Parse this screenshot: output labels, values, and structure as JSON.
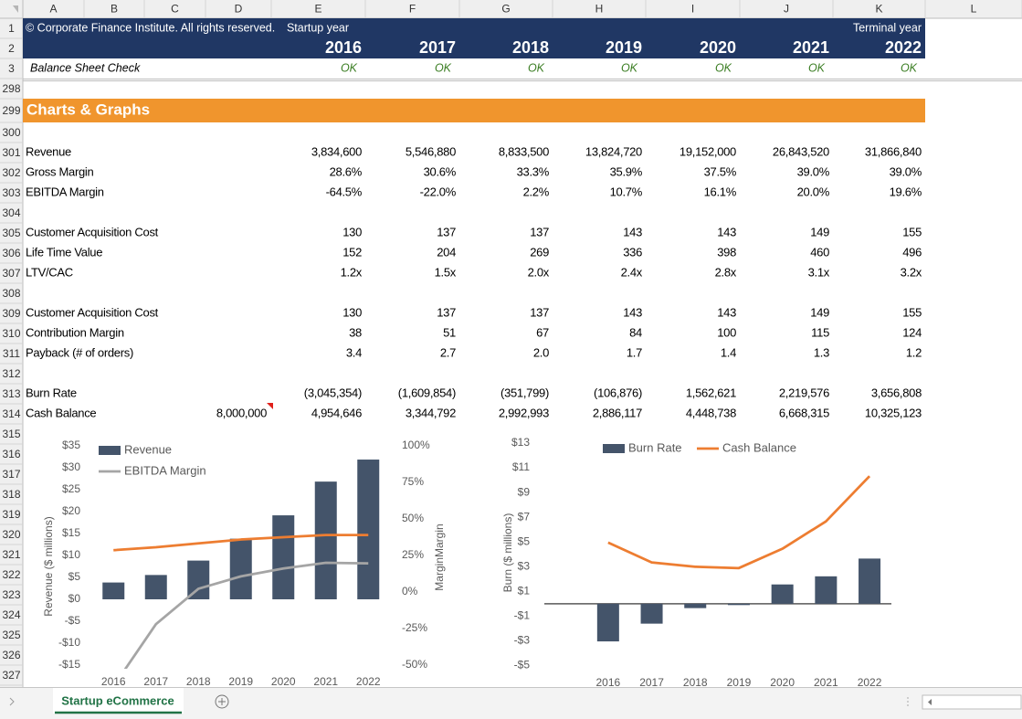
{
  "columns": [
    "A",
    "B",
    "C",
    "D",
    "E",
    "F",
    "G",
    "H",
    "I",
    "J",
    "K",
    "L"
  ],
  "row_numbers": [
    1,
    2,
    3,
    298,
    299,
    300,
    301,
    302,
    303,
    304,
    305,
    306,
    307,
    308,
    309,
    310,
    311,
    312,
    313,
    314,
    315,
    316,
    317,
    318,
    319,
    320,
    321,
    322,
    323,
    324,
    325,
    326,
    327
  ],
  "header": {
    "copyright": "© Corporate Finance Institute. All rights reserved.",
    "startup_label": "Startup year",
    "terminal_label": "Terminal year",
    "years": [
      2016,
      2017,
      2018,
      2019,
      2020,
      2021,
      2022
    ]
  },
  "check": {
    "label": "Balance Sheet Check",
    "values": [
      "OK",
      "OK",
      "OK",
      "OK",
      "OK",
      "OK",
      "OK"
    ]
  },
  "section_title": "Charts & Graphs",
  "table": {
    "rows": [
      {
        "label": "Revenue",
        "values": [
          "3,834,600",
          "5,546,880",
          "8,833,500",
          "13,824,720",
          "19,152,000",
          "26,843,520",
          "31,866,840"
        ]
      },
      {
        "label": "Gross Margin",
        "values": [
          "28.6%",
          "30.6%",
          "33.3%",
          "35.9%",
          "37.5%",
          "39.0%",
          "39.0%"
        ]
      },
      {
        "label": "EBITDA Margin",
        "values": [
          "-64.5%",
          "-22.0%",
          "2.2%",
          "10.7%",
          "16.1%",
          "20.0%",
          "19.6%"
        ]
      },
      {
        "label": "Customer Acquisition Cost",
        "values": [
          "130",
          "137",
          "137",
          "143",
          "143",
          "149",
          "155"
        ]
      },
      {
        "label": "Life Time Value",
        "values": [
          "152",
          "204",
          "269",
          "336",
          "398",
          "460",
          "496"
        ]
      },
      {
        "label": "LTV/CAC",
        "values": [
          "1.2x",
          "1.5x",
          "2.0x",
          "2.4x",
          "2.8x",
          "3.1x",
          "3.2x"
        ]
      },
      {
        "label": "Customer Acquisition Cost",
        "values": [
          "130",
          "137",
          "137",
          "143",
          "143",
          "149",
          "155"
        ]
      },
      {
        "label": "Contribution Margin",
        "values": [
          "38",
          "51",
          "67",
          "84",
          "100",
          "115",
          "124"
        ]
      },
      {
        "label": "Payback (# of orders)",
        "values": [
          "3.4",
          "2.7",
          "2.0",
          "1.7",
          "1.4",
          "1.3",
          "1.2"
        ]
      },
      {
        "label": "Burn Rate",
        "values": [
          "(3,045,354)",
          "(1,609,854)",
          "(351,799)",
          "(106,876)",
          "1,562,621",
          "2,219,576",
          "3,656,808"
        ]
      },
      {
        "label": "Cash Balance",
        "opening": "8,000,000",
        "values": [
          "4,954,646",
          "3,344,792",
          "2,992,993",
          "2,886,117",
          "4,448,738",
          "6,668,315",
          "10,325,123"
        ]
      }
    ]
  },
  "chart_data": [
    {
      "type": "bar-line",
      "categories": [
        "2016",
        "2017",
        "2018",
        "2019",
        "2020",
        "2021",
        "2022"
      ],
      "y_label": "Revenue ($ millions)",
      "y2_label": "MarginMargin",
      "ylim": [
        -15,
        35
      ],
      "yticks": [
        {
          "value": -15,
          "label": "-$15"
        },
        {
          "value": -10,
          "label": "-$10"
        },
        {
          "value": -5,
          "label": "-$5"
        },
        {
          "value": 0,
          "label": "$0"
        },
        {
          "value": 5,
          "label": "$5"
        },
        {
          "value": 10,
          "label": "$10"
        },
        {
          "value": 15,
          "label": "$15"
        },
        {
          "value": 20,
          "label": "$20"
        },
        {
          "value": 25,
          "label": "$25"
        },
        {
          "value": 30,
          "label": "$30"
        },
        {
          "value": 35,
          "label": "$35"
        }
      ],
      "y2lim": [
        -50,
        100
      ],
      "y2ticks": [
        {
          "value": -50,
          "label": "-50%"
        },
        {
          "value": -25,
          "label": "-25%"
        },
        {
          "value": 0,
          "label": "0%"
        },
        {
          "value": 25,
          "label": "25%"
        },
        {
          "value": 50,
          "label": "50%"
        },
        {
          "value": 75,
          "label": "75%"
        },
        {
          "value": 100,
          "label": "100%"
        }
      ],
      "series": [
        {
          "name": "Revenue",
          "type": "bar",
          "color": "#44546a",
          "values": [
            3.8346,
            5.54688,
            8.8335,
            13.82472,
            19.152,
            26.84352,
            31.86684
          ]
        },
        {
          "name": "EBITDA Margin",
          "type": "line",
          "axis": "y2",
          "color": "#a5a5a5",
          "values": [
            -64.5,
            -22.0,
            2.2,
            10.7,
            16.1,
            20.0,
            19.6
          ]
        },
        {
          "type": "line",
          "axis": "y2",
          "color": "#ed7d31",
          "values": [
            28.6,
            30.6,
            33.3,
            35.9,
            37.5,
            39.0,
            39.0
          ]
        }
      ]
    },
    {
      "type": "bar-line",
      "categories": [
        "2016",
        "2017",
        "2018",
        "2019",
        "2020",
        "2021",
        "2022"
      ],
      "y_label": "Burn ($ millions)",
      "ylim": [
        -5,
        13
      ],
      "yticks": [
        {
          "value": -5,
          "label": "-$5"
        },
        {
          "value": -3,
          "label": "-$3"
        },
        {
          "value": -1,
          "label": "-$1"
        },
        {
          "value": 1,
          "label": "$1"
        },
        {
          "value": 3,
          "label": "$3"
        },
        {
          "value": 5,
          "label": "$5"
        },
        {
          "value": 7,
          "label": "$7"
        },
        {
          "value": 9,
          "label": "$9"
        },
        {
          "value": 11,
          "label": "$11"
        },
        {
          "value": 13,
          "label": "$13"
        }
      ],
      "series": [
        {
          "name": "Burn Rate",
          "type": "bar",
          "color": "#44546a",
          "values": [
            -3.045354,
            -1.609854,
            -0.351799,
            -0.106876,
            1.562621,
            2.219576,
            3.656808
          ]
        },
        {
          "name": "Cash Balance",
          "type": "line",
          "color": "#ed7d31",
          "values": [
            4.954646,
            3.344792,
            2.992993,
            2.886117,
            4.448738,
            6.668315,
            10.325123
          ]
        }
      ]
    }
  ],
  "sheet_tab": "Startup eCommerce"
}
